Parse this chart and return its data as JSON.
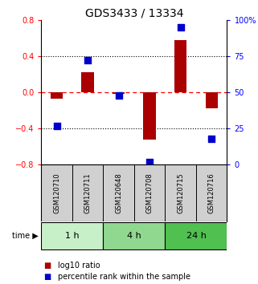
{
  "title": "GDS3433 / 13334",
  "samples": [
    "GSM120710",
    "GSM120711",
    "GSM120648",
    "GSM120708",
    "GSM120715",
    "GSM120716"
  ],
  "log10_ratio": [
    -0.07,
    0.22,
    -0.02,
    -0.52,
    0.58,
    -0.18
  ],
  "percentile_rank": [
    27,
    72,
    48,
    2,
    95,
    18
  ],
  "time_groups": [
    {
      "label": "1 h",
      "start": 0,
      "end": 2,
      "color": "#c8f0c8"
    },
    {
      "label": "4 h",
      "start": 2,
      "end": 4,
      "color": "#90d890"
    },
    {
      "label": "24 h",
      "start": 4,
      "end": 6,
      "color": "#50c050"
    }
  ],
  "bar_color": "#aa0000",
  "dot_color": "#0000cc",
  "ylim": [
    -0.8,
    0.8
  ],
  "y2lim": [
    0,
    100
  ],
  "yticks_left": [
    -0.8,
    -0.4,
    0.0,
    0.4,
    0.8
  ],
  "yticks_right": [
    0,
    25,
    50,
    75,
    100
  ],
  "ytick_labels_right": [
    "0",
    "25",
    "50",
    "75",
    "100%"
  ],
  "background_color": "#ffffff",
  "bar_width": 0.4,
  "dot_size": 30,
  "title_fontsize": 10,
  "tick_fontsize": 7,
  "sample_fontsize": 6,
  "legend_fontsize": 7,
  "time_fontsize": 8
}
